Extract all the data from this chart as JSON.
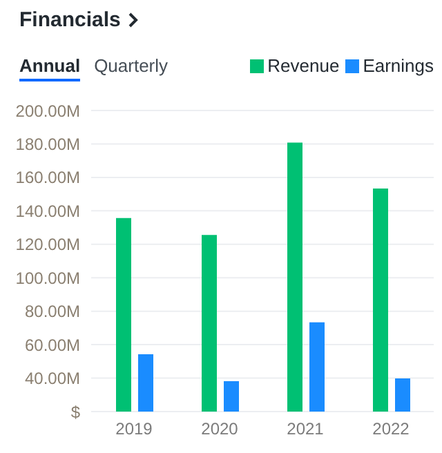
{
  "chart_data": {
    "type": "bar",
    "title": "Financials",
    "annotations": [
      "Annual",
      "Quarterly"
    ],
    "categories": [
      "2019",
      "2020",
      "2021",
      "2022"
    ],
    "series": [
      {
        "name": "Revenue",
        "color": "#00c073",
        "values": [
          135.7,
          125.6,
          180.8,
          153.4
        ]
      },
      {
        "name": "Earnings",
        "color": "#1a8cff",
        "values": [
          54.3,
          38.2,
          73.4,
          39.8
        ]
      }
    ],
    "ylim": [
      20,
      200
    ],
    "yticks": [
      {
        "value": 20,
        "label": "$"
      },
      {
        "value": 40,
        "label": "40.00M"
      },
      {
        "value": 60,
        "label": "60.00M"
      },
      {
        "value": 80,
        "label": "80.00M"
      },
      {
        "value": 100,
        "label": "100.00M"
      },
      {
        "value": 120,
        "label": "120.00M"
      },
      {
        "value": 140,
        "label": "140.00M"
      },
      {
        "value": 160,
        "label": "160.00M"
      },
      {
        "value": 180,
        "label": "180.00M"
      },
      {
        "value": 200,
        "label": "200.00M"
      }
    ],
    "grid": "y",
    "legend": "top right"
  }
}
